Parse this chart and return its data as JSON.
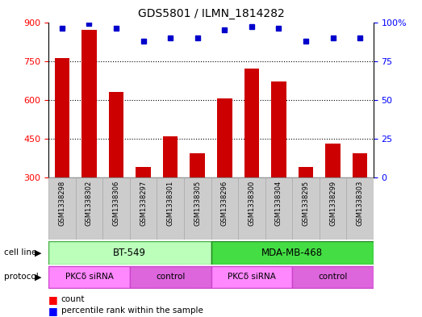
{
  "title": "GDS5801 / ILMN_1814282",
  "samples": [
    "GSM1338298",
    "GSM1338302",
    "GSM1338306",
    "GSM1338297",
    "GSM1338301",
    "GSM1338305",
    "GSM1338296",
    "GSM1338300",
    "GSM1338304",
    "GSM1338295",
    "GSM1338299",
    "GSM1338303"
  ],
  "counts": [
    760,
    870,
    630,
    340,
    460,
    395,
    605,
    720,
    670,
    340,
    430,
    395
  ],
  "percentiles": [
    96,
    99,
    96,
    88,
    90,
    90,
    95,
    97,
    96,
    88,
    90,
    90
  ],
  "ymin": 300,
  "ymax": 900,
  "yticks_left": [
    300,
    450,
    600,
    750,
    900
  ],
  "yticks_right": [
    0,
    25,
    50,
    75,
    100
  ],
  "bar_color": "#cc0000",
  "dot_color": "#0000cc",
  "grid_ticks": [
    450,
    600,
    750
  ],
  "bt549_color_light": "#bbffbb",
  "bt549_color_dark": "#44cc44",
  "mda_color_light": "#55ee55",
  "mda_color_dark": "#22aa22",
  "cell_bg": "#ccffcc",
  "cell_bg2": "#44dd44",
  "proto_color1": "#ff88ff",
  "proto_color2": "#dd55dd",
  "sample_box_color": "#cccccc",
  "sample_box_edge": "#aaaaaa"
}
